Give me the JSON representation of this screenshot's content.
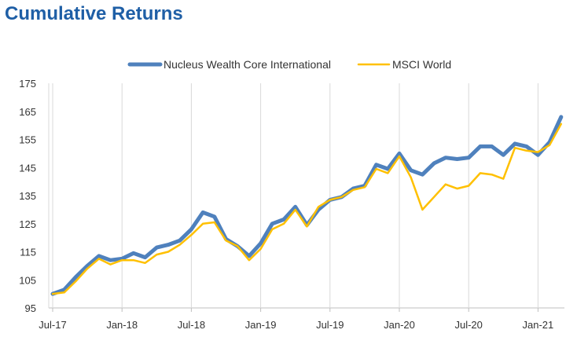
{
  "chart_data": {
    "type": "line",
    "title": "Cumulative Returns",
    "xlabel": "",
    "ylabel": "",
    "ylim": [
      95,
      175
    ],
    "yticks": [
      175,
      165,
      155,
      145,
      135,
      125,
      115,
      105,
      95
    ],
    "grid": "vertical gridlines at x tick labels",
    "legend_position": "top-center",
    "xtick_labels": [
      "Jul-17",
      "Jan-18",
      "Jul-18",
      "Jan-19",
      "Jul-19",
      "Jan-20",
      "Jul-20",
      "Jan-21"
    ],
    "x": [
      "Jul-17",
      "Aug-17",
      "Sep-17",
      "Oct-17",
      "Nov-17",
      "Dec-17",
      "Jan-18",
      "Feb-18",
      "Mar-18",
      "Apr-18",
      "May-18",
      "Jun-18",
      "Jul-18",
      "Aug-18",
      "Sep-18",
      "Oct-18",
      "Nov-18",
      "Dec-18",
      "Jan-19",
      "Feb-19",
      "Mar-19",
      "Apr-19",
      "May-19",
      "Jun-19",
      "Jul-19",
      "Aug-19",
      "Sep-19",
      "Oct-19",
      "Nov-19",
      "Dec-19",
      "Jan-20",
      "Feb-20",
      "Mar-20",
      "Apr-20",
      "May-20",
      "Jun-20",
      "Jul-20",
      "Aug-20",
      "Sep-20",
      "Oct-20",
      "Nov-20",
      "Dec-20",
      "Jan-21",
      "Feb-21",
      "Mar-21"
    ],
    "series": [
      {
        "name": "Nucleus Wealth Core International",
        "color": "#4f81bd",
        "values": [
          100,
          101.5,
          106,
          110,
          113.5,
          112,
          112.5,
          114.5,
          113,
          116.5,
          117.5,
          119,
          123,
          129,
          127.5,
          119.5,
          117,
          113.5,
          118,
          125,
          126.5,
          131,
          124.5,
          130,
          133.5,
          134.5,
          137.5,
          138.5,
          146,
          144.5,
          150,
          144,
          142.5,
          146.5,
          148.5,
          148,
          148.5,
          152.5,
          152.5,
          149.5,
          153.5,
          152.5,
          149.5,
          154,
          163
        ]
      },
      {
        "name": "MSCI World",
        "color": "#ffc000",
        "values": [
          100,
          100.5,
          104.5,
          109,
          112.5,
          110.5,
          112,
          112,
          111,
          114,
          115,
          117.5,
          121,
          125,
          125.5,
          119,
          117,
          112,
          116,
          123,
          125,
          130,
          124,
          131,
          133.5,
          134.5,
          137,
          138,
          144.5,
          143,
          149,
          141.5,
          130,
          134.5,
          139,
          137.5,
          138.5,
          143,
          142.5,
          141,
          152,
          151,
          150.5,
          153,
          160.5
        ]
      }
    ]
  }
}
